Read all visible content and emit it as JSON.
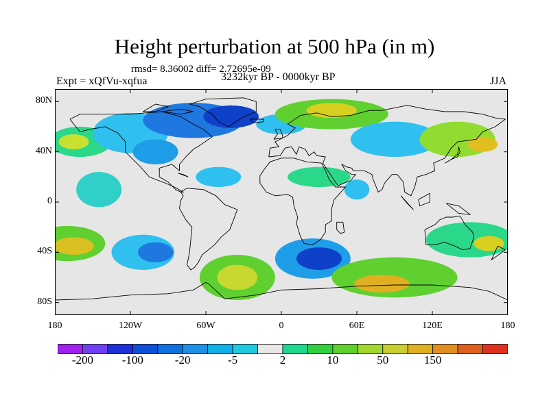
{
  "title": "Height perturbation at 500 hPa (in m)",
  "stats": "rmsd= 8.36002 diff= 2.72695e-09",
  "experiment": "Expt = xQfVu-xqfua",
  "period": "3232kyr BP - 0000kyr BP",
  "season": "JJA",
  "map": {
    "lat_ticks": [
      "80N",
      "40N",
      "0",
      "40S",
      "80S"
    ],
    "lat_values": [
      80,
      40,
      0,
      -40,
      -80
    ],
    "lon_ticks": [
      "180",
      "120W",
      "60W",
      "0",
      "60E",
      "120E",
      "180"
    ],
    "lon_values": [
      -180,
      -120,
      -60,
      0,
      60,
      120,
      180
    ],
    "lat_range": [
      -90,
      90
    ],
    "lon_range": [
      -180,
      180
    ],
    "ocean_fill": "#e6e6e6",
    "regions": [
      {
        "lon": -145,
        "lat": 10,
        "rlon": 18,
        "rlat": 14,
        "color": "#30d0c8",
        "level": "2 to 5"
      },
      {
        "lon": -160,
        "lat": 48,
        "rlon": 25,
        "rlat": 12,
        "color": "#2bd88a",
        "level": "2 to 5"
      },
      {
        "lon": -165,
        "lat": 48,
        "rlon": 12,
        "rlat": 6,
        "color": "#c8e030",
        "level": "10 to 20"
      },
      {
        "lon": -120,
        "lat": 55,
        "rlon": 30,
        "rlat": 16,
        "color": "#30c0f0",
        "level": "-5 to -2"
      },
      {
        "lon": -100,
        "lat": 40,
        "rlon": 18,
        "rlat": 10,
        "color": "#1e9ee8",
        "level": "-10 to -5"
      },
      {
        "lon": -70,
        "lat": 65,
        "rlon": 40,
        "rlat": 14,
        "color": "#1e78e0",
        "level": "-20 to -10"
      },
      {
        "lon": -40,
        "lat": 68,
        "rlon": 22,
        "rlat": 9,
        "color": "#0f40c8",
        "level": "-50 to -20"
      },
      {
        "lon": 0,
        "lat": 62,
        "rlon": 20,
        "rlat": 8,
        "color": "#30c0f0",
        "level": "-5 to -2"
      },
      {
        "lon": 40,
        "lat": 70,
        "rlon": 45,
        "rlat": 12,
        "color": "#60d030",
        "level": "5 to 10"
      },
      {
        "lon": 40,
        "lat": 73,
        "rlon": 20,
        "rlat": 6,
        "color": "#d8d020",
        "level": "20 to 50"
      },
      {
        "lon": 90,
        "lat": 50,
        "rlon": 35,
        "rlat": 14,
        "color": "#30c0f0",
        "level": "-5 to -2"
      },
      {
        "lon": 140,
        "lat": 50,
        "rlon": 30,
        "rlat": 14,
        "color": "#90dc30",
        "level": "10 to 20"
      },
      {
        "lon": 160,
        "lat": 46,
        "rlon": 12,
        "rlat": 6,
        "color": "#e0c020",
        "level": "20 to 50"
      },
      {
        "lon": -50,
        "lat": 20,
        "rlon": 18,
        "rlat": 8,
        "color": "#30c0f0",
        "level": "-5 to -2"
      },
      {
        "lon": 30,
        "lat": 20,
        "rlon": 25,
        "rlat": 8,
        "color": "#2bd88a",
        "level": "2 to 5"
      },
      {
        "lon": -170,
        "lat": -33,
        "rlon": 30,
        "rlat": 14,
        "color": "#60d030",
        "level": "5 to 10"
      },
      {
        "lon": -165,
        "lat": -35,
        "rlon": 16,
        "rlat": 7,
        "color": "#d8c020",
        "level": "20 to 50"
      },
      {
        "lon": -110,
        "lat": -40,
        "rlon": 25,
        "rlat": 14,
        "color": "#30c0f0",
        "level": "-5 to -2"
      },
      {
        "lon": -100,
        "lat": -40,
        "rlon": 14,
        "rlat": 8,
        "color": "#1e78e0",
        "level": "-20 to -10"
      },
      {
        "lon": -35,
        "lat": -60,
        "rlon": 30,
        "rlat": 18,
        "color": "#60d030",
        "level": "5 to 10"
      },
      {
        "lon": -35,
        "lat": -60,
        "rlon": 16,
        "rlat": 10,
        "color": "#c8d830",
        "level": "10 to 20"
      },
      {
        "lon": 25,
        "lat": -45,
        "rlon": 30,
        "rlat": 16,
        "color": "#1e9ee8",
        "level": "-10 to -5"
      },
      {
        "lon": 30,
        "lat": -45,
        "rlon": 18,
        "rlat": 9,
        "color": "#0f40c8",
        "level": "-50 to -20"
      },
      {
        "lon": 90,
        "lat": -60,
        "rlon": 50,
        "rlat": 16,
        "color": "#60d030",
        "level": "5 to 10"
      },
      {
        "lon": 80,
        "lat": -65,
        "rlon": 22,
        "rlat": 7,
        "color": "#e0b020",
        "level": "20 to 50"
      },
      {
        "lon": 150,
        "lat": -30,
        "rlon": 35,
        "rlat": 14,
        "color": "#2bd88a",
        "level": "2 to 5"
      },
      {
        "lon": 165,
        "lat": -33,
        "rlon": 12,
        "rlat": 6,
        "color": "#d8d020",
        "level": "20 to 50"
      },
      {
        "lon": 60,
        "lat": 10,
        "rlon": 10,
        "rlat": 8,
        "color": "#30c0f0",
        "level": "-5 to -2"
      }
    ],
    "coastlines": [
      [
        [
          -168,
          66
        ],
        [
          -160,
          70
        ],
        [
          -140,
          70
        ],
        [
          -120,
          70
        ],
        [
          -95,
          72
        ],
        [
          -80,
          68
        ],
        [
          -70,
          62
        ],
        [
          -62,
          58
        ],
        [
          -55,
          52
        ],
        [
          -65,
          45
        ],
        [
          -70,
          42
        ],
        [
          -76,
          36
        ],
        [
          -81,
          30
        ],
        [
          -81,
          25
        ],
        [
          -87,
          30
        ],
        [
          -97,
          27
        ],
        [
          -97,
          20
        ],
        [
          -90,
          16
        ],
        [
          -84,
          10
        ],
        [
          -80,
          8
        ],
        [
          -78,
          8
        ],
        [
          -85,
          12
        ],
        [
          -92,
          15
        ],
        [
          -105,
          20
        ],
        [
          -112,
          28
        ],
        [
          -118,
          34
        ],
        [
          -124,
          40
        ],
        [
          -124,
          48
        ],
        [
          -130,
          55
        ],
        [
          -140,
          60
        ],
        [
          -152,
          58
        ],
        [
          -160,
          56
        ],
        [
          -165,
          62
        ],
        [
          -168,
          66
        ]
      ],
      [
        [
          -80,
          8
        ],
        [
          -75,
          11
        ],
        [
          -62,
          10
        ],
        [
          -52,
          5
        ],
        [
          -45,
          -2
        ],
        [
          -35,
          -6
        ],
        [
          -38,
          -14
        ],
        [
          -41,
          -22
        ],
        [
          -48,
          -28
        ],
        [
          -53,
          -34
        ],
        [
          -58,
          -38
        ],
        [
          -63,
          -42
        ],
        [
          -66,
          -48
        ],
        [
          -69,
          -52
        ],
        [
          -72,
          -54
        ],
        [
          -75,
          -50
        ],
        [
          -73,
          -40
        ],
        [
          -72,
          -30
        ],
        [
          -71,
          -20
        ],
        [
          -76,
          -14
        ],
        [
          -81,
          -5
        ],
        [
          -80,
          1
        ],
        [
          -78,
          5
        ],
        [
          -80,
          8
        ]
      ],
      [
        [
          -73,
          78
        ],
        [
          -60,
          82
        ],
        [
          -30,
          83
        ],
        [
          -20,
          80
        ],
        [
          -20,
          72
        ],
        [
          -30,
          68
        ],
        [
          -42,
          60
        ],
        [
          -50,
          64
        ],
        [
          -55,
          70
        ],
        [
          -65,
          76
        ],
        [
          -73,
          78
        ]
      ],
      [
        [
          -10,
          36
        ],
        [
          -9,
          43
        ],
        [
          -2,
          44
        ],
        [
          -5,
          48
        ],
        [
          5,
          53
        ],
        [
          9,
          57
        ],
        [
          11,
          59
        ],
        [
          5,
          62
        ],
        [
          15,
          69
        ],
        [
          28,
          71
        ],
        [
          40,
          68
        ],
        [
          55,
          69
        ],
        [
          70,
          73
        ],
        [
          80,
          73
        ],
        [
          100,
          77
        ],
        [
          115,
          74
        ],
        [
          130,
          72
        ],
        [
          145,
          72
        ],
        [
          160,
          70
        ],
        [
          170,
          67
        ],
        [
          178,
          66
        ],
        [
          170,
          60
        ],
        [
          160,
          56
        ],
        [
          155,
          50
        ],
        [
          140,
          48
        ],
        [
          135,
          43
        ],
        [
          130,
          35
        ],
        [
          121,
          31
        ],
        [
          122,
          25
        ],
        [
          115,
          22
        ],
        [
          108,
          20
        ],
        [
          106,
          12
        ],
        [
          103,
          5
        ],
        [
          98,
          8
        ],
        [
          97,
          16
        ],
        [
          92,
          22
        ],
        [
          88,
          22
        ],
        [
          82,
          15
        ],
        [
          80,
          10
        ],
        [
          77,
          8
        ],
        [
          73,
          18
        ],
        [
          72,
          22
        ],
        [
          66,
          25
        ],
        [
          57,
          25
        ],
        [
          56,
          27
        ],
        [
          52,
          28
        ],
        [
          48,
          30
        ],
        [
          51,
          25
        ],
        [
          56,
          22
        ],
        [
          59,
          22
        ],
        [
          55,
          17
        ],
        [
          52,
          16
        ],
        [
          45,
          13
        ],
        [
          43,
          16
        ],
        [
          39,
          22
        ],
        [
          35,
          28
        ],
        [
          33,
          31
        ],
        [
          35,
          36
        ],
        [
          28,
          37
        ],
        [
          26,
          40
        ],
        [
          22,
          37
        ],
        [
          19,
          42
        ],
        [
          14,
          44
        ],
        [
          12,
          38
        ],
        [
          8,
          44
        ],
        [
          3,
          43
        ],
        [
          -1,
          37
        ],
        [
          -10,
          36
        ]
      ],
      [
        [
          -17,
          21
        ],
        [
          -17,
          15
        ],
        [
          -12,
          8
        ],
        [
          -5,
          5
        ],
        [
          5,
          6
        ],
        [
          9,
          4
        ],
        [
          10,
          -3
        ],
        [
          13,
          -12
        ],
        [
          12,
          -17
        ],
        [
          15,
          -27
        ],
        [
          18,
          -33
        ],
        [
          25,
          -34
        ],
        [
          31,
          -30
        ],
        [
          35,
          -24
        ],
        [
          35,
          -18
        ],
        [
          40,
          -15
        ],
        [
          40,
          -5
        ],
        [
          42,
          2
        ],
        [
          51,
          12
        ],
        [
          43,
          12
        ],
        [
          38,
          18
        ],
        [
          35,
          25
        ],
        [
          32,
          31
        ],
        [
          20,
          32
        ],
        [
          10,
          35
        ],
        [
          0,
          35
        ],
        [
          -9,
          32
        ],
        [
          -13,
          27
        ],
        [
          -17,
          21
        ]
      ],
      [
        [
          114,
          -22
        ],
        [
          115,
          -34
        ],
        [
          122,
          -34
        ],
        [
          130,
          -32
        ],
        [
          138,
          -35
        ],
        [
          144,
          -38
        ],
        [
          150,
          -37
        ],
        [
          153,
          -28
        ],
        [
          152,
          -24
        ],
        [
          146,
          -18
        ],
        [
          142,
          -11
        ],
        [
          136,
          -12
        ],
        [
          131,
          -12
        ],
        [
          126,
          -14
        ],
        [
          122,
          -18
        ],
        [
          114,
          -22
        ]
      ],
      [
        [
          -180,
          -78
        ],
        [
          -150,
          -77
        ],
        [
          -120,
          -74
        ],
        [
          -90,
          -73
        ],
        [
          -70,
          -70
        ],
        [
          -60,
          -64
        ],
        [
          -58,
          -65
        ],
        [
          -45,
          -77
        ],
        [
          -20,
          -74
        ],
        [
          0,
          -70
        ],
        [
          30,
          -69
        ],
        [
          60,
          -67
        ],
        [
          90,
          -66
        ],
        [
          120,
          -66
        ],
        [
          150,
          -68
        ],
        [
          165,
          -71
        ],
        [
          180,
          -78
        ]
      ],
      [
        [
          -6,
          50
        ],
        [
          -3,
          54
        ],
        [
          -5,
          58
        ],
        [
          -1,
          58
        ],
        [
          1,
          53
        ],
        [
          1,
          51
        ],
        [
          -6,
          50
        ]
      ],
      [
        [
          49,
          -16
        ],
        [
          50,
          -24
        ],
        [
          47,
          -25
        ],
        [
          44,
          -22
        ],
        [
          44,
          -16
        ],
        [
          49,
          -16
        ]
      ],
      [
        [
          130,
          31
        ],
        [
          135,
          34
        ],
        [
          140,
          36
        ],
        [
          142,
          40
        ],
        [
          141,
          44
        ],
        [
          140,
          38
        ],
        [
          135,
          34
        ],
        [
          130,
          31
        ]
      ],
      [
        [
          95,
          5
        ],
        [
          105,
          -6
        ],
        [
          100,
          -1
        ],
        [
          95,
          5
        ]
      ],
      [
        [
          109,
          2
        ],
        [
          118,
          7
        ],
        [
          118,
          0
        ],
        [
          110,
          -3
        ],
        [
          109,
          2
        ]
      ],
      [
        [
          131,
          -1
        ],
        [
          141,
          -3
        ],
        [
          150,
          -10
        ],
        [
          141,
          -9
        ],
        [
          131,
          -1
        ]
      ],
      [
        [
          172,
          -35
        ],
        [
          178,
          -38
        ],
        [
          174,
          -41
        ],
        [
          167,
          -46
        ],
        [
          172,
          -35
        ]
      ],
      [
        [
          -82,
          23
        ],
        [
          -74,
          20
        ],
        [
          -78,
          22
        ],
        [
          -82,
          23
        ]
      ],
      [
        [
          -25,
          66
        ],
        [
          -14,
          66
        ],
        [
          -14,
          64
        ],
        [
          -22,
          63
        ],
        [
          -25,
          66
        ]
      ],
      [
        [
          -95,
          72
        ],
        [
          -80,
          74
        ],
        [
          -70,
          72
        ],
        [
          -80,
          70
        ],
        [
          -95,
          72
        ]
      ],
      [
        [
          -110,
          72
        ],
        [
          -100,
          78
        ],
        [
          -90,
          76
        ],
        [
          -100,
          72
        ],
        [
          -110,
          72
        ]
      ]
    ]
  },
  "colorbar": {
    "colors": [
      "#a020f0",
      "#7040f0",
      "#2030d8",
      "#1050d8",
      "#1070e0",
      "#1e90e8",
      "#10b0e8",
      "#20c8e0",
      "#e8e8e8",
      "#20d890",
      "#30d040",
      "#60d030",
      "#a0d830",
      "#c8d030",
      "#e0b020",
      "#e09020",
      "#e06020",
      "#e03020"
    ],
    "labels": [
      "-200",
      "-100",
      "-20",
      "-5",
      "2",
      "10",
      "50",
      "150"
    ],
    "label_boundary_index": [
      1,
      3,
      5,
      7,
      9,
      11,
      13,
      15
    ]
  }
}
